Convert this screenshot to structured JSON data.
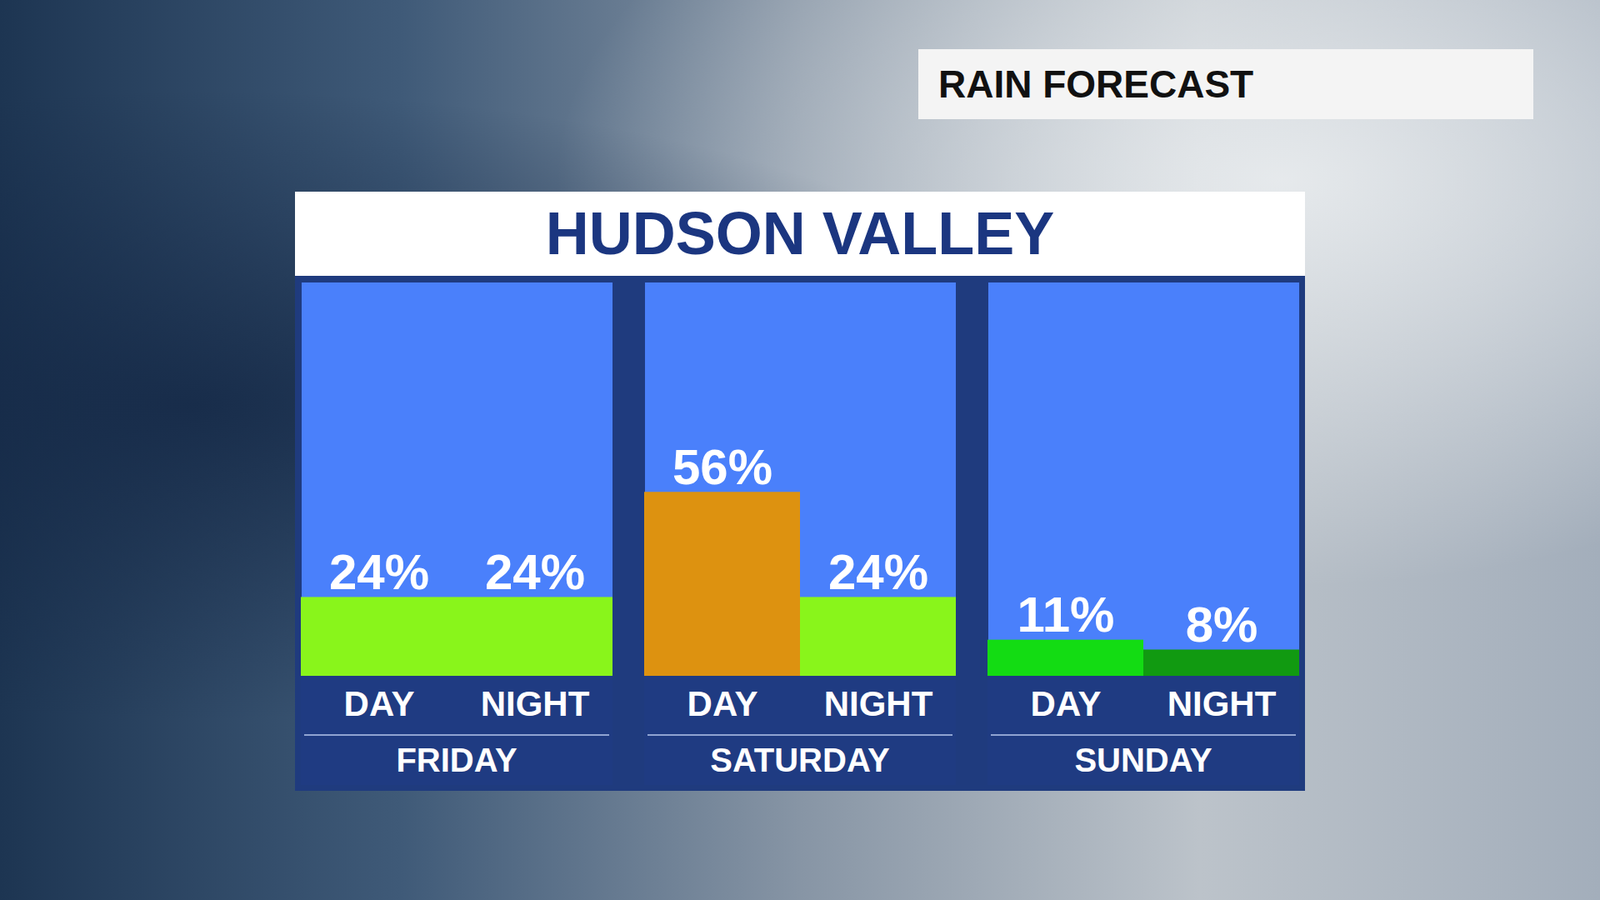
{
  "chart_data": {
    "type": "bar",
    "title": "HUDSON VALLEY",
    "subtitle": "RAIN FORECAST",
    "ylim": [
      0,
      120
    ],
    "data_labels": true,
    "tick_labels": "x",
    "panels": [
      {
        "title": "FRIDAY",
        "categories": [
          "DAY",
          "NIGHT"
        ],
        "values": [
          24,
          24
        ],
        "value_labels": [
          "24%",
          "24%"
        ],
        "colors": [
          "#89f51b",
          "#89f51b"
        ]
      },
      {
        "title": "SATURDAY",
        "categories": [
          "DAY",
          "NIGHT"
        ],
        "values": [
          56,
          24
        ],
        "value_labels": [
          "56%",
          "24%"
        ],
        "colors": [
          "#dd9210",
          "#89f51b"
        ]
      },
      {
        "title": "SUNDAY",
        "categories": [
          "DAY",
          "NIGHT"
        ],
        "values": [
          11,
          8
        ],
        "value_labels": [
          "11%",
          "8%"
        ],
        "colors": [
          "#13dc13",
          "#119a11"
        ]
      }
    ]
  }
}
